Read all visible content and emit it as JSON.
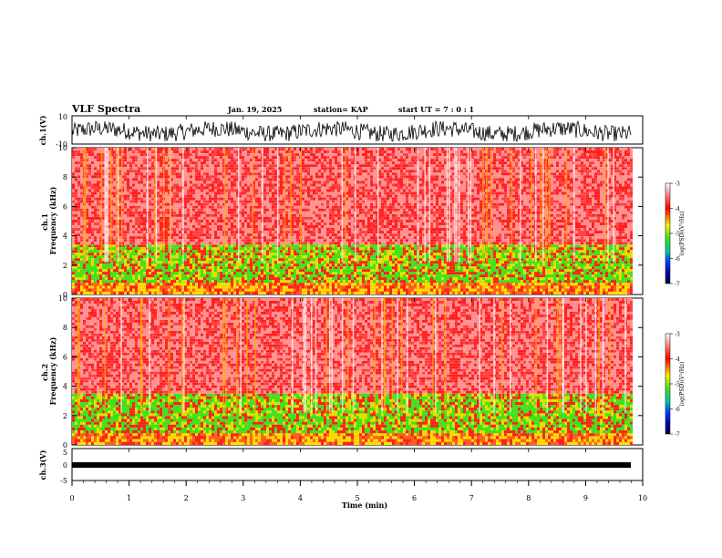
{
  "header": {
    "title": "VLF Spectra",
    "date": "Jan. 19, 2025",
    "station": "station= KAP",
    "start_ut": "start  UT  =  7 : 0  : 1"
  },
  "chart_data": [
    {
      "type": "line",
      "panel": "ch1-waveform",
      "ylabel": "ch.1(V)",
      "ylim": [
        -10,
        10
      ],
      "yticks": [
        "10",
        "-10"
      ],
      "xlim": [
        0,
        10
      ],
      "description_series": "noisy waveform fluctuating between about -8 and 6 V",
      "series": [
        {
          "values_range": [
            -8,
            6
          ]
        }
      ]
    },
    {
      "type": "heatmap",
      "panel": "ch1-spectrogram",
      "ylabel": "ch.1\nFrequency  (kHz)",
      "ylim": [
        0,
        10
      ],
      "yticks": [
        "0",
        "2",
        "4",
        "6",
        "8",
        "10"
      ],
      "xlim": [
        0,
        9.85
      ],
      "colorbar": {
        "label": "log(PSD)(V²/Hz)",
        "range": [
          -7,
          -3
        ],
        "ticks": [
          "-3",
          "-4",
          "-5",
          "-6",
          "-7"
        ]
      },
      "bands": [
        {
          "from_khz": 0,
          "to_khz": 0.8,
          "level": -4.6
        },
        {
          "from_khz": 0.8,
          "to_khz": 3.4,
          "level": -4.9
        },
        {
          "from_khz": 3.4,
          "to_khz": 10,
          "level": -3.6
        }
      ]
    },
    {
      "type": "heatmap",
      "panel": "ch2-spectrogram",
      "ylabel": "ch.2\nFrequency  (kHz)",
      "ylim": [
        0,
        10
      ],
      "yticks": [
        "0",
        "2",
        "4",
        "6",
        "8",
        "10"
      ],
      "xlim": [
        0,
        9.85
      ],
      "colorbar": {
        "label": "log(PSD)(V²/Hz)",
        "range": [
          -7,
          -3
        ],
        "ticks": [
          "-3",
          "-4",
          "-5",
          "-6",
          "-7"
        ]
      },
      "bands": [
        {
          "from_khz": 0,
          "to_khz": 0.8,
          "level": -4.6
        },
        {
          "from_khz": 0.8,
          "to_khz": 3.5,
          "level": -5.1
        },
        {
          "from_khz": 3.5,
          "to_khz": 10,
          "level": -3.6
        }
      ]
    },
    {
      "type": "line",
      "panel": "ch3-waveform",
      "ylabel": "ch.3(V)",
      "ylim": [
        -5,
        5
      ],
      "yticks": [
        "5",
        "0",
        "-5"
      ],
      "xlim": [
        0,
        10
      ],
      "xlabel": "Time  (min)",
      "xticks": [
        "0",
        "1",
        "2",
        "3",
        "4",
        "5",
        "6",
        "7",
        "8",
        "9",
        "10"
      ],
      "series": [
        {
          "values_range": [
            -0.6,
            0.6
          ]
        }
      ]
    }
  ],
  "colors": {
    "high": "#ff2020",
    "mid": "#f0e020",
    "low": "#20e020",
    "veryLow": "#1020c0",
    "min": "#000060",
    "max": "#ffffff"
  }
}
